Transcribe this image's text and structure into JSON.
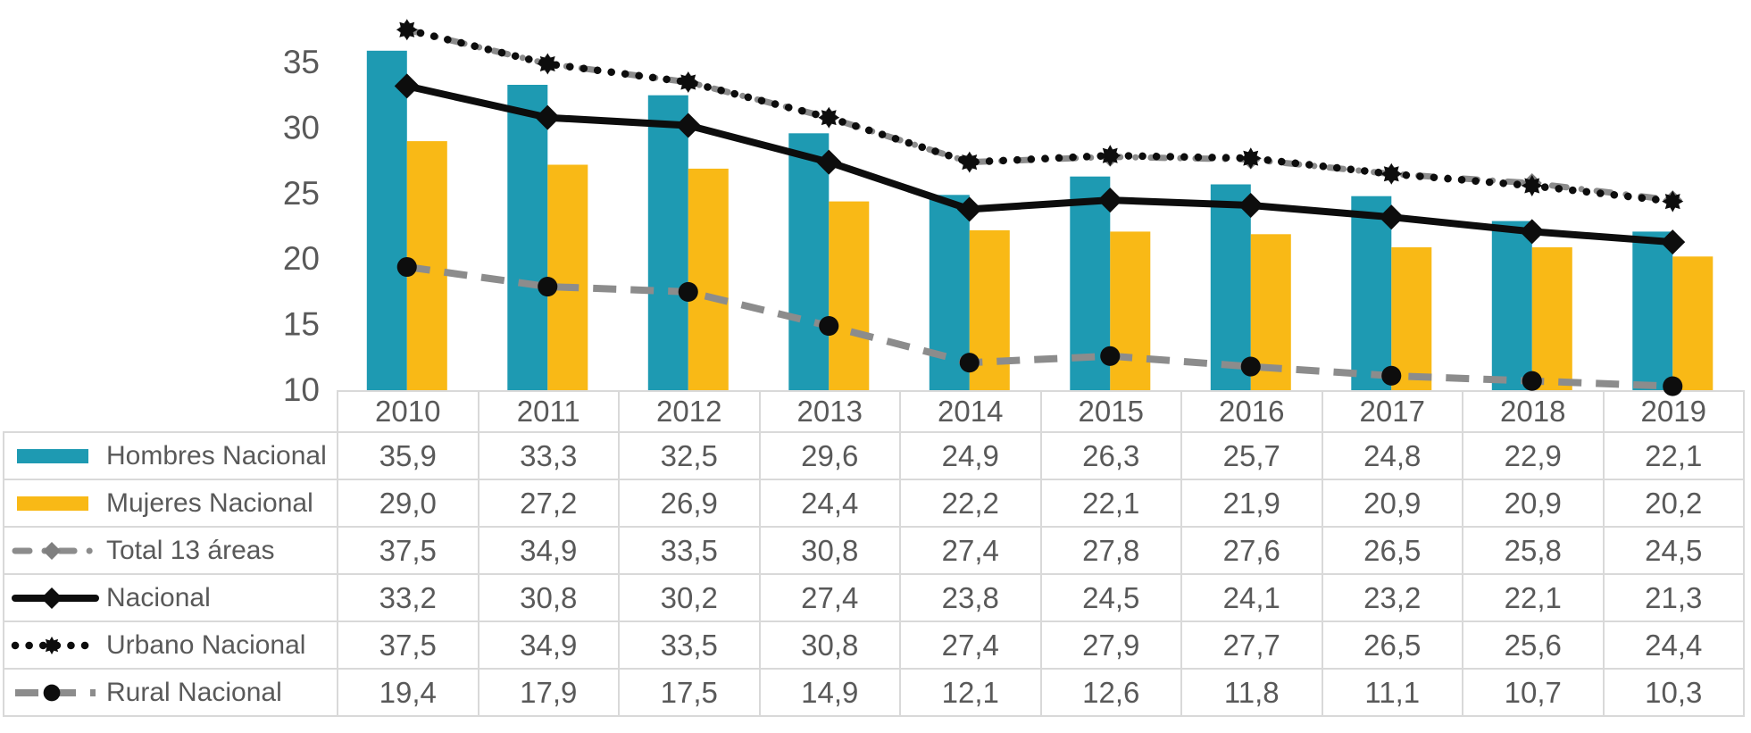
{
  "chart_data": {
    "type": "combo-bar-line",
    "title": "",
    "categories": [
      "2010",
      "2011",
      "2012",
      "2013",
      "2014",
      "2015",
      "2016",
      "2017",
      "2018",
      "2019"
    ],
    "y_axis": {
      "ticks": [
        35,
        30,
        25,
        20,
        15,
        10
      ],
      "min": 10,
      "max": 39.8,
      "label": ""
    },
    "grid": false,
    "legend_position": "table-left",
    "decimal_separator": ",",
    "series": [
      {
        "name": "Hombres Nacional",
        "kind": "bar",
        "color": "#1E9AB2",
        "values": [
          35.9,
          33.3,
          32.5,
          29.6,
          24.9,
          26.3,
          25.7,
          24.8,
          22.9,
          22.1
        ]
      },
      {
        "name": "Mujeres Nacional",
        "kind": "bar",
        "color": "#F9B916",
        "values": [
          29.0,
          27.2,
          26.9,
          24.4,
          22.2,
          22.1,
          21.9,
          20.9,
          20.9,
          20.2
        ]
      },
      {
        "name": "Total 13 áreas",
        "kind": "line",
        "line_style": "dash-dot",
        "marker": "diamond",
        "color": "#8C8C8C",
        "marker_color": "#7F7F7F",
        "values": [
          37.5,
          34.9,
          33.5,
          30.8,
          27.4,
          27.8,
          27.6,
          26.5,
          25.8,
          24.5
        ]
      },
      {
        "name": "Nacional",
        "kind": "line",
        "line_style": "solid",
        "marker": "diamond",
        "color": "#0D0D0D",
        "marker_color": "#0D0D0D",
        "values": [
          33.2,
          30.8,
          30.2,
          27.4,
          23.8,
          24.5,
          24.1,
          23.2,
          22.1,
          21.3
        ]
      },
      {
        "name": "Urbano Nacional",
        "kind": "line",
        "line_style": "dotted",
        "marker": "star",
        "color": "#0D0D0D",
        "marker_color": "#0D0D0D",
        "values": [
          37.5,
          34.9,
          33.5,
          30.8,
          27.4,
          27.9,
          27.7,
          26.5,
          25.6,
          24.4
        ]
      },
      {
        "name": "Rural Nacional",
        "kind": "line",
        "line_style": "dash",
        "marker": "circle",
        "color": "#8C8C8C",
        "marker_color": "#0D0D0D",
        "values": [
          19.4,
          17.9,
          17.5,
          14.9,
          12.1,
          12.6,
          11.8,
          11.1,
          10.7,
          10.3
        ]
      }
    ],
    "style": {
      "text_color": "#595959",
      "border_color": "#D9D9D9",
      "background": "#FFFFFF"
    }
  }
}
